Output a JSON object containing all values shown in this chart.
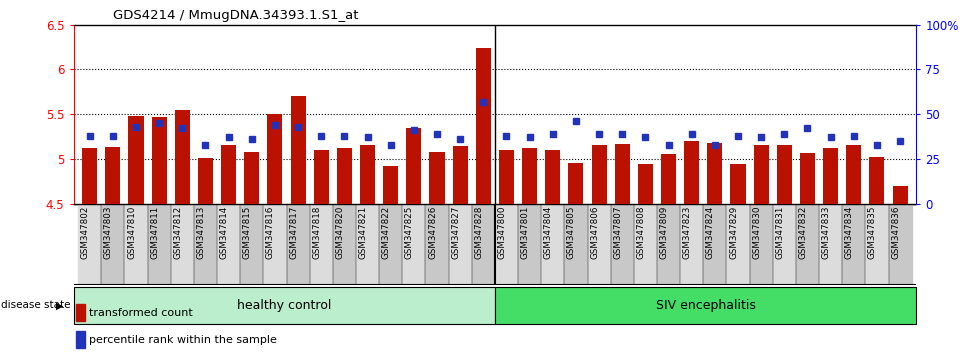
{
  "title": "GDS4214 / MmugDNA.34393.1.S1_at",
  "samples": [
    "GSM347802",
    "GSM347803",
    "GSM347810",
    "GSM347811",
    "GSM347812",
    "GSM347813",
    "GSM347814",
    "GSM347815",
    "GSM347816",
    "GSM347817",
    "GSM347818",
    "GSM347820",
    "GSM347821",
    "GSM347822",
    "GSM347825",
    "GSM347826",
    "GSM347827",
    "GSM347828",
    "GSM347800",
    "GSM347801",
    "GSM347804",
    "GSM347805",
    "GSM347806",
    "GSM347807",
    "GSM347808",
    "GSM347809",
    "GSM347823",
    "GSM347824",
    "GSM347829",
    "GSM347830",
    "GSM347831",
    "GSM347832",
    "GSM347833",
    "GSM347834",
    "GSM347835",
    "GSM347836"
  ],
  "bar_values": [
    5.12,
    5.13,
    5.48,
    5.47,
    5.55,
    5.01,
    5.16,
    5.08,
    5.5,
    5.7,
    5.1,
    5.12,
    5.16,
    4.92,
    5.34,
    5.08,
    5.14,
    6.24,
    5.1,
    5.12,
    5.1,
    4.95,
    5.15,
    5.17,
    4.94,
    5.05,
    5.2,
    5.18,
    4.94,
    5.16,
    5.15,
    5.07,
    5.12,
    5.15,
    5.02,
    4.7
  ],
  "percentile_values": [
    38,
    38,
    43,
    45,
    42,
    33,
    37,
    36,
    44,
    43,
    38,
    38,
    37,
    33,
    41,
    39,
    36,
    57,
    38,
    37,
    39,
    46,
    39,
    39,
    37,
    33,
    39,
    33,
    38,
    37,
    39,
    42,
    37,
    38,
    33,
    35
  ],
  "num_healthy": 18,
  "bar_color": "#BB1100",
  "percentile_color": "#2233BB",
  "ylim_left": [
    4.5,
    6.5
  ],
  "ylim_right": [
    0,
    100
  ],
  "yticks_left": [
    4.5,
    5.0,
    5.5,
    6.0,
    6.5
  ],
  "ytick_labels_left": [
    "4.5",
    "5",
    "5.5",
    "6",
    "6.5"
  ],
  "yticks_right": [
    0,
    25,
    50,
    75,
    100
  ],
  "ytick_labels_right": [
    "0",
    "25",
    "50",
    "75",
    "100%"
  ],
  "grid_values": [
    5.0,
    5.5,
    6.0
  ],
  "healthy_label": "healthy control",
  "siv_label": "SIV encephalitis",
  "disease_state_label": "disease state",
  "legend_bar_label": "transformed count",
  "legend_pct_label": "percentile rank within the sample",
  "healthy_color": "#BBEECC",
  "siv_color": "#44DD66",
  "xtick_bg_even": "#DCDCDC",
  "xtick_bg_odd": "#C8C8C8"
}
